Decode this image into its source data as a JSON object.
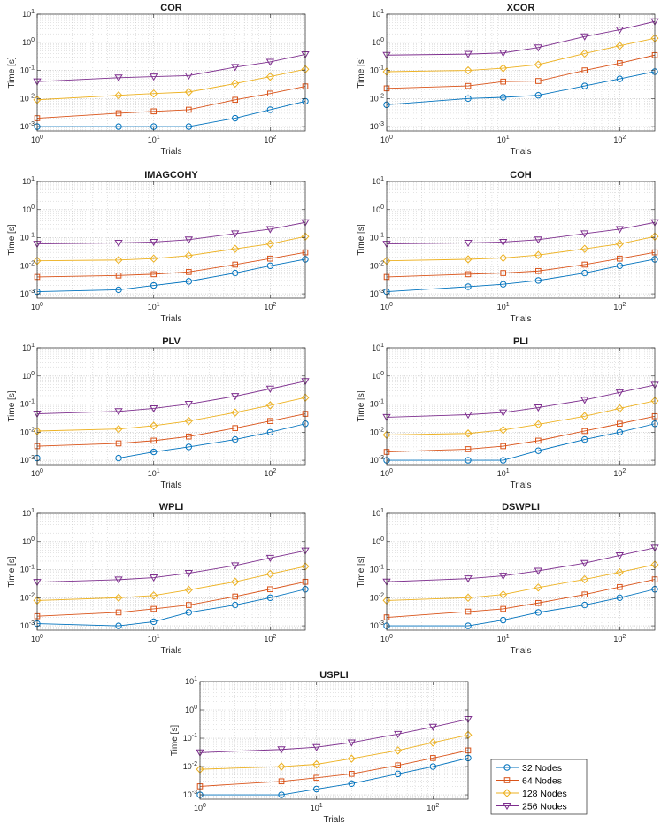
{
  "figure": {
    "legend": {
      "entries": [
        {
          "label": "32 Nodes",
          "color": "#0072BD",
          "marker": "circle"
        },
        {
          "label": "64 Nodes",
          "color": "#D95319",
          "marker": "square"
        },
        {
          "label": "128 Nodes",
          "color": "#EDB120",
          "marker": "diamond"
        },
        {
          "label": "256 Nodes",
          "color": "#7E2F8E",
          "marker": "triangle-down"
        }
      ]
    }
  },
  "chart_data": [
    {
      "type": "line",
      "title": "COR",
      "xlabel": "Trials",
      "ylabel": "Time [s]",
      "xscale": "log",
      "yscale": "log",
      "xlim": [
        1,
        200
      ],
      "ylim": [
        0.0007,
        10
      ],
      "grid": true,
      "x": [
        1,
        5,
        10,
        20,
        50,
        100,
        200
      ],
      "series": [
        {
          "name": "32 Nodes",
          "values": [
            0.001,
            0.001,
            0.001,
            0.001,
            0.002,
            0.004,
            0.008
          ]
        },
        {
          "name": "64 Nodes",
          "values": [
            0.002,
            0.003,
            0.0035,
            0.004,
            0.009,
            0.015,
            0.027
          ]
        },
        {
          "name": "128 Nodes",
          "values": [
            0.009,
            0.013,
            0.015,
            0.017,
            0.034,
            0.06,
            0.11
          ]
        },
        {
          "name": "256 Nodes",
          "values": [
            0.04,
            0.055,
            0.06,
            0.065,
            0.13,
            0.2,
            0.37
          ]
        }
      ]
    },
    {
      "type": "line",
      "title": "XCOR",
      "xlabel": "Trials",
      "ylabel": "Time [s]",
      "xscale": "log",
      "yscale": "log",
      "xlim": [
        1,
        200
      ],
      "ylim": [
        0.0007,
        10
      ],
      "grid": true,
      "x": [
        1,
        5,
        10,
        20,
        50,
        100,
        200
      ],
      "series": [
        {
          "name": "32 Nodes",
          "values": [
            0.006,
            0.01,
            0.011,
            0.013,
            0.028,
            0.05,
            0.09
          ]
        },
        {
          "name": "64 Nodes",
          "values": [
            0.023,
            0.028,
            0.04,
            0.042,
            0.1,
            0.18,
            0.35
          ]
        },
        {
          "name": "128 Nodes",
          "values": [
            0.09,
            0.1,
            0.12,
            0.16,
            0.4,
            0.75,
            1.4
          ]
        },
        {
          "name": "256 Nodes",
          "values": [
            0.35,
            0.38,
            0.42,
            0.65,
            1.6,
            2.8,
            5.5
          ]
        }
      ]
    },
    {
      "type": "line",
      "title": "IMAGCOHY",
      "xlabel": "Trials",
      "ylabel": "Time [s]",
      "xscale": "log",
      "yscale": "log",
      "xlim": [
        1,
        200
      ],
      "ylim": [
        0.0007,
        10
      ],
      "grid": true,
      "x": [
        1,
        5,
        10,
        20,
        50,
        100,
        200
      ],
      "series": [
        {
          "name": "32 Nodes",
          "values": [
            0.0012,
            0.0014,
            0.002,
            0.0028,
            0.0055,
            0.01,
            0.017
          ]
        },
        {
          "name": "64 Nodes",
          "values": [
            0.004,
            0.0045,
            0.005,
            0.006,
            0.011,
            0.018,
            0.03
          ]
        },
        {
          "name": "128 Nodes",
          "values": [
            0.015,
            0.016,
            0.018,
            0.023,
            0.04,
            0.06,
            0.11
          ]
        },
        {
          "name": "256 Nodes",
          "values": [
            0.06,
            0.065,
            0.07,
            0.085,
            0.14,
            0.2,
            0.35
          ]
        }
      ]
    },
    {
      "type": "line",
      "title": "COH",
      "xlabel": "Trials",
      "ylabel": "Time [s]",
      "xscale": "log",
      "yscale": "log",
      "xlim": [
        1,
        200
      ],
      "ylim": [
        0.0007,
        10
      ],
      "grid": true,
      "x": [
        1,
        5,
        10,
        20,
        50,
        100,
        200
      ],
      "series": [
        {
          "name": "32 Nodes",
          "values": [
            0.0012,
            0.0018,
            0.0022,
            0.003,
            0.0055,
            0.01,
            0.017
          ]
        },
        {
          "name": "64 Nodes",
          "values": [
            0.004,
            0.005,
            0.0055,
            0.0065,
            0.011,
            0.018,
            0.03
          ]
        },
        {
          "name": "128 Nodes",
          "values": [
            0.015,
            0.017,
            0.019,
            0.024,
            0.04,
            0.06,
            0.11
          ]
        },
        {
          "name": "256 Nodes",
          "values": [
            0.06,
            0.065,
            0.07,
            0.085,
            0.14,
            0.2,
            0.35
          ]
        }
      ]
    },
    {
      "type": "line",
      "title": "PLV",
      "xlabel": "Trials",
      "ylabel": "Time [s]",
      "xscale": "log",
      "yscale": "log",
      "xlim": [
        1,
        200
      ],
      "ylim": [
        0.0007,
        10
      ],
      "grid": true,
      "x": [
        1,
        5,
        10,
        20,
        50,
        100,
        200
      ],
      "series": [
        {
          "name": "32 Nodes",
          "values": [
            0.0012,
            0.0012,
            0.002,
            0.003,
            0.0055,
            0.01,
            0.02
          ]
        },
        {
          "name": "64 Nodes",
          "values": [
            0.0032,
            0.004,
            0.005,
            0.007,
            0.014,
            0.025,
            0.045
          ]
        },
        {
          "name": "128 Nodes",
          "values": [
            0.011,
            0.013,
            0.017,
            0.025,
            0.05,
            0.09,
            0.17
          ]
        },
        {
          "name": "256 Nodes",
          "values": [
            0.045,
            0.055,
            0.07,
            0.1,
            0.19,
            0.35,
            0.65
          ]
        }
      ]
    },
    {
      "type": "line",
      "title": "PLI",
      "xlabel": "Trials",
      "ylabel": "Time [s]",
      "xscale": "log",
      "yscale": "log",
      "xlim": [
        1,
        200
      ],
      "ylim": [
        0.0007,
        10
      ],
      "grid": true,
      "x": [
        1,
        5,
        10,
        20,
        50,
        100,
        200
      ],
      "series": [
        {
          "name": "32 Nodes",
          "values": [
            0.001,
            0.001,
            0.001,
            0.0022,
            0.0055,
            0.01,
            0.02
          ]
        },
        {
          "name": "64 Nodes",
          "values": [
            0.002,
            0.0025,
            0.0032,
            0.005,
            0.011,
            0.02,
            0.037
          ]
        },
        {
          "name": "128 Nodes",
          "values": [
            0.008,
            0.009,
            0.012,
            0.019,
            0.037,
            0.07,
            0.13
          ]
        },
        {
          "name": "256 Nodes",
          "values": [
            0.034,
            0.042,
            0.05,
            0.075,
            0.14,
            0.26,
            0.48
          ]
        }
      ]
    },
    {
      "type": "line",
      "title": "WPLI",
      "xlabel": "Trials",
      "ylabel": "Time [s]",
      "xscale": "log",
      "yscale": "log",
      "xlim": [
        1,
        200
      ],
      "ylim": [
        0.0007,
        10
      ],
      "grid": true,
      "x": [
        1,
        5,
        10,
        20,
        50,
        100,
        200
      ],
      "series": [
        {
          "name": "32 Nodes",
          "values": [
            0.0012,
            0.001,
            0.0014,
            0.003,
            0.0055,
            0.01,
            0.02
          ]
        },
        {
          "name": "64 Nodes",
          "values": [
            0.0022,
            0.003,
            0.004,
            0.0055,
            0.011,
            0.02,
            0.037
          ]
        },
        {
          "name": "128 Nodes",
          "values": [
            0.008,
            0.01,
            0.012,
            0.019,
            0.037,
            0.07,
            0.13
          ]
        },
        {
          "name": "256 Nodes",
          "values": [
            0.036,
            0.044,
            0.052,
            0.075,
            0.14,
            0.26,
            0.47
          ]
        }
      ]
    },
    {
      "type": "line",
      "title": "DSWPLI",
      "xlabel": "Trials",
      "ylabel": "Time [s]",
      "xscale": "log",
      "yscale": "log",
      "xlim": [
        1,
        200
      ],
      "ylim": [
        0.0007,
        10
      ],
      "grid": true,
      "x": [
        1,
        5,
        10,
        20,
        50,
        100,
        200
      ],
      "series": [
        {
          "name": "32 Nodes",
          "values": [
            0.001,
            0.001,
            0.0016,
            0.003,
            0.0055,
            0.01,
            0.02
          ]
        },
        {
          "name": "64 Nodes",
          "values": [
            0.002,
            0.0032,
            0.004,
            0.0065,
            0.013,
            0.024,
            0.045
          ]
        },
        {
          "name": "128 Nodes",
          "values": [
            0.008,
            0.01,
            0.013,
            0.023,
            0.045,
            0.08,
            0.15
          ]
        },
        {
          "name": "256 Nodes",
          "values": [
            0.037,
            0.048,
            0.06,
            0.09,
            0.17,
            0.32,
            0.6
          ]
        }
      ]
    },
    {
      "type": "line",
      "title": "USPLI",
      "xlabel": "Trials",
      "ylabel": "Time [s]",
      "xscale": "log",
      "yscale": "log",
      "xlim": [
        1,
        200
      ],
      "ylim": [
        0.0007,
        10
      ],
      "grid": true,
      "x": [
        1,
        5,
        10,
        20,
        50,
        100,
        200
      ],
      "series": [
        {
          "name": "32 Nodes",
          "values": [
            0.001,
            0.001,
            0.0016,
            0.0025,
            0.0055,
            0.01,
            0.02
          ]
        },
        {
          "name": "64 Nodes",
          "values": [
            0.002,
            0.003,
            0.004,
            0.0055,
            0.011,
            0.02,
            0.037
          ]
        },
        {
          "name": "128 Nodes",
          "values": [
            0.008,
            0.01,
            0.012,
            0.019,
            0.037,
            0.07,
            0.13
          ]
        },
        {
          "name": "256 Nodes",
          "values": [
            0.031,
            0.04,
            0.048,
            0.07,
            0.14,
            0.25,
            0.47
          ]
        }
      ]
    }
  ]
}
